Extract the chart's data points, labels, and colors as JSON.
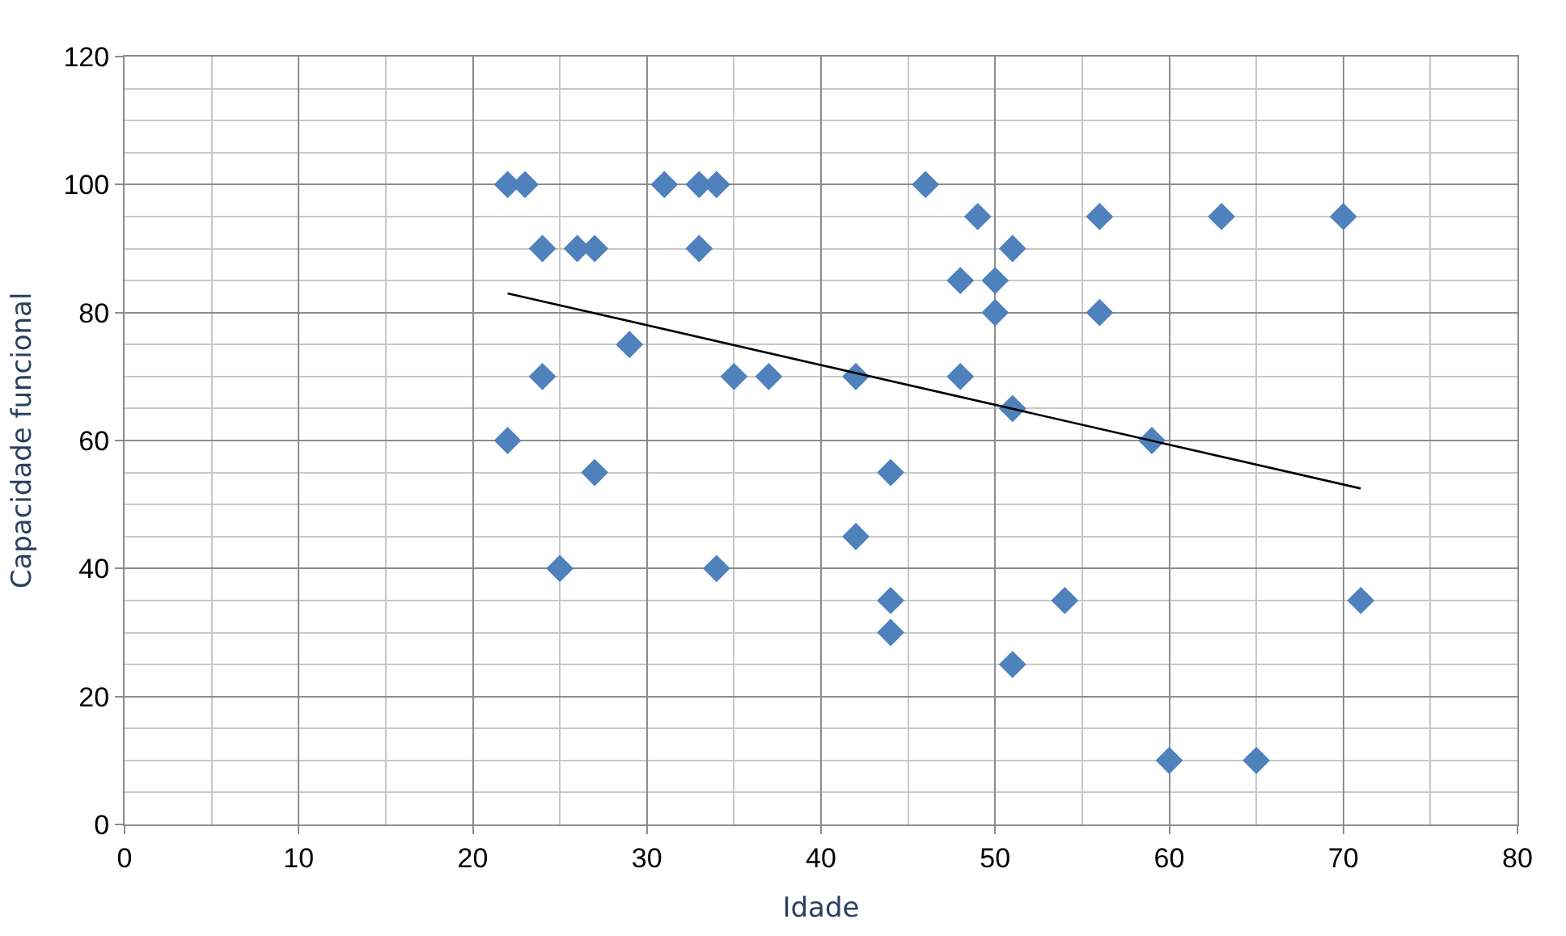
{
  "chart_data": {
    "type": "scatter",
    "xlabel": "Idade",
    "ylabel": "Capacidade funcional",
    "xlim": [
      0,
      80
    ],
    "xticks": [
      0,
      10,
      20,
      30,
      40,
      50,
      60,
      70,
      80
    ],
    "ylim": [
      0,
      120
    ],
    "yticks": [
      0,
      20,
      40,
      60,
      80,
      100,
      120
    ],
    "grid": true,
    "legend": false,
    "marker": "diamond",
    "series": [
      {
        "color": "#4f81bd",
        "x": [
          22,
          23,
          24,
          26,
          27,
          22,
          24,
          25,
          27,
          29,
          31,
          33,
          34,
          33,
          35,
          37,
          34,
          42,
          42,
          44,
          44,
          44,
          46,
          49,
          48,
          50,
          50,
          51,
          48,
          51,
          51,
          54,
          56,
          56,
          59,
          60,
          63,
          65,
          70,
          71
        ],
        "values": [
          100,
          100,
          90,
          90,
          90,
          60,
          70,
          40,
          55,
          75,
          100,
          100,
          100,
          90,
          70,
          70,
          40,
          70,
          45,
          55,
          35,
          30,
          100,
          95,
          85,
          85,
          80,
          90,
          70,
          65,
          25,
          35,
          95,
          80,
          60,
          10,
          95,
          10,
          95,
          35
        ]
      },
      {
        "type": "line",
        "color": "#000000",
        "marker": "none",
        "x": [
          22,
          71
        ],
        "values": [
          83,
          52.5
        ]
      }
    ]
  }
}
